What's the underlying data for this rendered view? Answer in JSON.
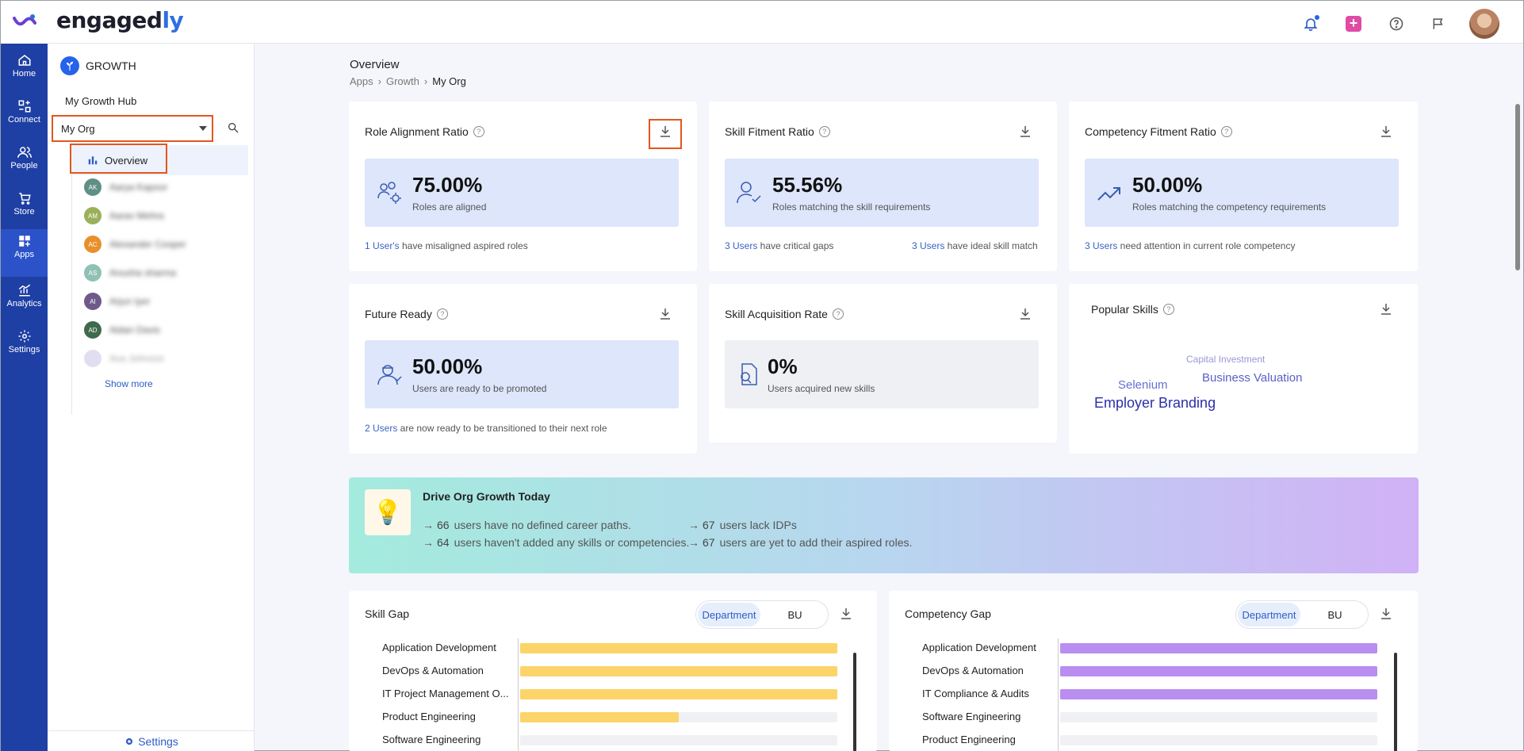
{
  "app": {
    "logo_main": "engaged",
    "logo_accent": "ly"
  },
  "rail": {
    "items": [
      {
        "label": "Home",
        "icon": "home-icon"
      },
      {
        "label": "Connect",
        "icon": "connect-icon"
      },
      {
        "label": "People",
        "icon": "people-icon"
      },
      {
        "label": "Store",
        "icon": "cart-icon"
      },
      {
        "label": "Apps",
        "icon": "apps-icon",
        "active": true
      },
      {
        "label": "Analytics",
        "icon": "analytics-icon"
      },
      {
        "label": "Settings",
        "icon": "gear-icon"
      }
    ]
  },
  "sidebar": {
    "section": "GROWTH",
    "hub_link": "My Growth Hub",
    "org_select": "My Org",
    "overview": "Overview",
    "people": [
      {
        "initials": "AK",
        "name": "Aarya Kapoor",
        "color": "#5f8f86"
      },
      {
        "initials": "AM",
        "name": "Aarav Mehra",
        "color": "#9bb05a"
      },
      {
        "initials": "AC",
        "name": "Alexander Cooper",
        "color": "#e8902c"
      },
      {
        "initials": "AS",
        "name": "Anusha sharma",
        "color": "#8fc1b4"
      },
      {
        "initials": "AI",
        "name": "Arjun Iyer",
        "color": "#6e5a8a"
      },
      {
        "initials": "AD",
        "name": "Aidan Davis",
        "color": "#3f6a4d"
      },
      {
        "initials": "",
        "name": "Ava Johnson",
        "color": "#c9c2e6"
      }
    ],
    "show_more": "Show more",
    "footer_settings": "Settings"
  },
  "header": {
    "title": "Overview",
    "breadcrumb": [
      "Apps",
      "Growth",
      "My Org"
    ]
  },
  "cards": {
    "role_alignment": {
      "title": "Role Alignment Ratio",
      "value": "75.00%",
      "sub": "Roles are aligned",
      "foot_link": "1 User's",
      "foot_text": " have misaligned aspired roles"
    },
    "skill_fitment": {
      "title": "Skill Fitment Ratio",
      "value": "55.56%",
      "sub": "Roles matching the skill requirements",
      "foot_link1": "3 Users",
      "foot_text1": " have critical gaps",
      "foot_link2": "3 Users",
      "foot_text2": " have ideal skill match"
    },
    "competency_fitment": {
      "title": "Competency Fitment Ratio",
      "value": "50.00%",
      "sub": "Roles matching the competency requirements",
      "foot_link": "3 Users",
      "foot_text": " need attention in current role competency"
    },
    "future_ready": {
      "title": "Future Ready",
      "value": "50.00%",
      "sub": "Users are ready to be promoted",
      "foot_link": "2 Users",
      "foot_text": " are now ready to be transitioned to their next role"
    },
    "skill_acquisition": {
      "title": "Skill Acquisition Rate",
      "value": "0%",
      "sub": "Users acquired new skills"
    },
    "popular_skills": {
      "title": "Popular Skills",
      "words": [
        "Capital Investment",
        "Business Valuation",
        "Selenium",
        "Employer Branding"
      ]
    }
  },
  "banner": {
    "title": "Drive Org Growth Today",
    "items": [
      {
        "count": "66",
        "text": "users have no defined career paths."
      },
      {
        "count": "67",
        "text": "users lack IDPs"
      },
      {
        "count": "64",
        "text": "users haven't added any skills or competencies."
      },
      {
        "count": "67",
        "text": "users are yet to add their aspired roles."
      }
    ]
  },
  "skill_gap": {
    "title": "Skill Gap",
    "toggle": [
      "Department",
      "BU"
    ],
    "color": "#fcd469",
    "rows": [
      {
        "label": "Application Development",
        "pct": 1.0
      },
      {
        "label": "DevOps & Automation",
        "pct": 1.0
      },
      {
        "label": "IT Project Management O...",
        "pct": 1.0
      },
      {
        "label": "Product Engineering",
        "pct": 0.5
      },
      {
        "label": "Software Engineering",
        "pct": 0
      }
    ]
  },
  "competency_gap": {
    "title": "Competency Gap",
    "toggle": [
      "Department",
      "BU"
    ],
    "color": "#b98ef0",
    "rows": [
      {
        "label": "Application Development",
        "pct": 1.0
      },
      {
        "label": "DevOps & Automation",
        "pct": 1.0
      },
      {
        "label": "IT Compliance & Audits",
        "pct": 1.0
      },
      {
        "label": "Software Engineering",
        "pct": 0
      },
      {
        "label": "Product Engineering",
        "pct": 0
      }
    ]
  }
}
